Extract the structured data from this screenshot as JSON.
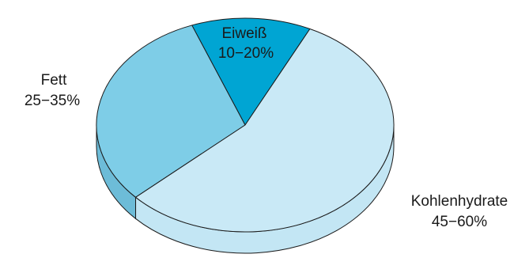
{
  "chart_data": {
    "type": "pie",
    "style": "3d",
    "slices": [
      {
        "name": "Eiweiß",
        "range": "10–20%",
        "value": 13,
        "color": "#00a5d3",
        "side_color": "#0089b5"
      },
      {
        "name": "Fett",
        "range": "25–35%",
        "value": 31,
        "color": "#7ecde7",
        "side_color": "#6dbcd8"
      },
      {
        "name": "Kohlenhydrate",
        "range": "45–60%",
        "value": 56,
        "color": "#c9e9f6",
        "side_color": "#c3e6f4"
      }
    ],
    "labels": {
      "eiweiss_name": "Eiweiß",
      "eiweiss_range": "10−20%",
      "fett_name": "Fett",
      "fett_range": "25−35%",
      "kh_name": "Kohlenhydrate",
      "kh_range": "45−60%"
    },
    "outline_color": "#1a1a1a"
  }
}
